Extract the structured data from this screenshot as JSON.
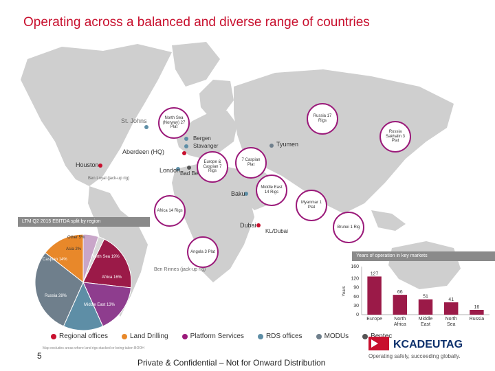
{
  "title": "Operating across a balanced and diverse range of countries",
  "map_labels": {
    "st_johns": "St. Johns",
    "houston": "Houston",
    "ben_loyal": "Ben Loyal (jack-up rig)",
    "aberdeen": "Aberdeen (HQ)",
    "bergen": "Bergen",
    "stavanger": "Stavanger",
    "london": "London",
    "bad_bentheim": "Bad Bentheim",
    "tyumen": "Tyumen",
    "baku": "Baku",
    "dubai": "Dubai",
    "kl_name": "KL/Dubai",
    "ben_rinnes": "Ben Rinnes (jack-up rig)"
  },
  "callouts": {
    "north_sea": "North Sea (Norway) 27 Plat",
    "russia": "Russia 17 Rigs",
    "russia_sakhalin": "Russia Sakhalin 3 Plat",
    "europe_caspian": "Europe & Caspian 7 Rigs",
    "caspian_plat": "7 Caspian Plat",
    "middle_east": "Middle East 14 Rigs",
    "africa": "Africa 14 Rigs",
    "myanmar": "Myanmar 1 Plat",
    "brunei": "Brunei 1 Rig",
    "angola": "Angola 3 Plat"
  },
  "pie": {
    "header": "LTM Q2 2015 EBITDA split by region",
    "slices": [
      {
        "label": "Other",
        "pct": 5,
        "color": "#c9a6c9"
      },
      {
        "label": "Asia",
        "pct": 2,
        "color": "#d8d8d8"
      },
      {
        "label": "North Sea",
        "pct": 19,
        "color": "#9b1a48"
      },
      {
        "label": "Africa",
        "pct": 16,
        "color": "#8e3d8e"
      },
      {
        "label": "Middle East",
        "pct": 13,
        "color": "#5e8ea6"
      },
      {
        "label": "Russia",
        "pct": 28,
        "color": "#6f7f8c"
      },
      {
        "label": "Caspian",
        "pct": 14,
        "color": "#e8882a"
      }
    ],
    "label_texts": {
      "other": "Other 5%",
      "asia": "Asia 2%",
      "north_sea": "North Sea 19%",
      "africa": "Africa 16%",
      "middle_east": "Middle East 13%",
      "russia": "Russia 28%",
      "caspian": "Caspian 14%"
    }
  },
  "chart_data": {
    "type": "bar",
    "title": "Years of operation in key markets",
    "ylabel": "Years",
    "categories": [
      "Europe",
      "North Africa",
      "Middle East",
      "North Sea",
      "Russia"
    ],
    "values": [
      127,
      66,
      51,
      41,
      16
    ],
    "ylim": [
      0,
      160
    ],
    "yticks": [
      0,
      30,
      60,
      90,
      120,
      160
    ],
    "color": "#9b1a48"
  },
  "legend": [
    {
      "label": "Regional offices",
      "color": "#c8102e"
    },
    {
      "label": "Land Drilling",
      "color": "#e8882a"
    },
    {
      "label": "Platform Services",
      "color": "#9b1a7a"
    },
    {
      "label": "RDS offices",
      "color": "#5e8ea6"
    },
    {
      "label": "MODUs",
      "color": "#6f7f8c"
    },
    {
      "label": "Bentec",
      "color": "#555555"
    }
  ],
  "page_number": "5",
  "footer": "Private & Confidential – Not for Onward Distribution",
  "logo_text": "KCADEUTAG",
  "logo_tagline": "Operating safely, succeeding globally.",
  "small_note": "Map excludes areas where land rigs stacked or being taken BOOH"
}
